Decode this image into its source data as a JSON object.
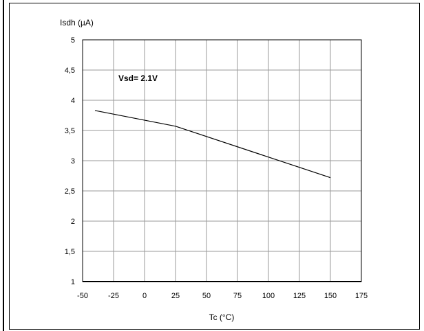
{
  "chart_data": {
    "type": "line",
    "ylabel": "Isdh (µA)",
    "xlabel": "Tc (°C)",
    "annotation": "Vsd= 2.1V",
    "xlim": [
      -50,
      175
    ],
    "ylim": [
      1,
      5
    ],
    "x_ticks": [
      "-50",
      "-25",
      "0",
      "25",
      "50",
      "75",
      "100",
      "125",
      "150",
      "175"
    ],
    "y_ticks": [
      "5",
      "4,5",
      "4",
      "3,5",
      "3",
      "2,5",
      "2",
      "1,5",
      "1"
    ],
    "grid": true,
    "series": [
      {
        "x": [
          -40,
          25,
          150
        ],
        "values": [
          3.83,
          3.57,
          2.72
        ]
      }
    ]
  }
}
